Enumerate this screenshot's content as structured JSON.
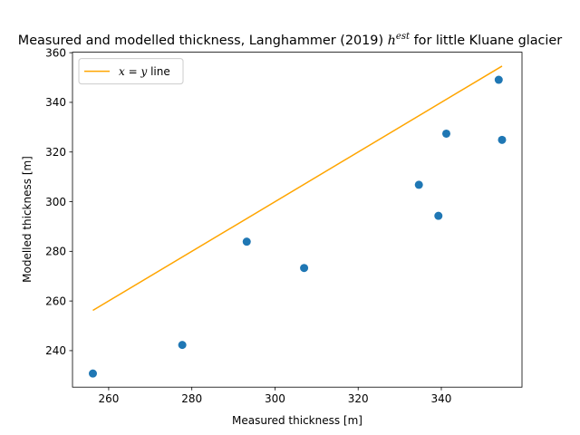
{
  "chart_data": {
    "type": "scatter",
    "title": {
      "prefix": "Measured and modelled thickness, Langhammer (2019) ",
      "math_base": "h",
      "math_sup": "est",
      "suffix": " for little Kluane glacier"
    },
    "xlabel": "Measured thickness [m]",
    "ylabel": "Modelled thickness [m]",
    "xlim": [
      251.3,
      359.4
    ],
    "ylim": [
      225.3,
      360.2
    ],
    "xticks": [
      260,
      280,
      300,
      320,
      340
    ],
    "yticks": [
      240,
      260,
      280,
      300,
      320,
      340,
      360
    ],
    "grid": false,
    "legend_position": "top-left",
    "series": [
      {
        "kind": "points",
        "color": "#1f77b4",
        "points": [
          {
            "x": 256.2,
            "y": 230.8
          },
          {
            "x": 277.7,
            "y": 242.3
          },
          {
            "x": 293.2,
            "y": 283.9
          },
          {
            "x": 307.0,
            "y": 273.3
          },
          {
            "x": 334.6,
            "y": 306.8
          },
          {
            "x": 339.3,
            "y": 294.3
          },
          {
            "x": 341.2,
            "y": 327.4
          },
          {
            "x": 353.8,
            "y": 349.1
          },
          {
            "x": 354.6,
            "y": 324.9
          }
        ]
      },
      {
        "kind": "line",
        "color": "#ffa500",
        "label_base_x": "x",
        "label_eq": " = ",
        "label_base_y": "y",
        "label_rest": " line",
        "points": [
          {
            "x": 256.2,
            "y": 256.2
          },
          {
            "x": 354.6,
            "y": 354.6
          }
        ]
      }
    ]
  }
}
